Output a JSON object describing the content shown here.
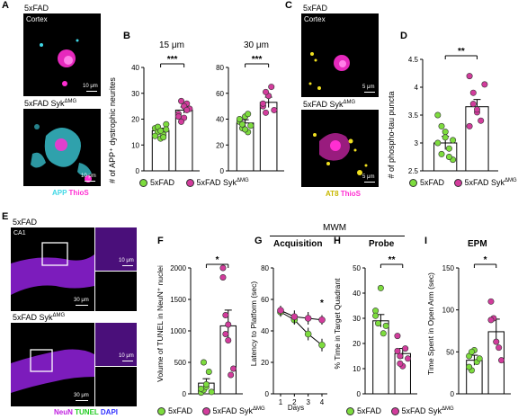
{
  "colors": {
    "wt": "#7ddc3e",
    "ko": "#d23c9c",
    "app": "#3fd7e6",
    "thios": "#ff2ed2",
    "at8": "#f0e020",
    "neun": "#a01fe0",
    "tunel": "#22ff22",
    "dapi": "#3030ff"
  },
  "panelA": {
    "letter": "A",
    "top_label": "5xFAD",
    "region": "Cortex",
    "bottom_label": "5xFAD Syk",
    "sup": "ΔMG",
    "scale_top": "10 μm",
    "scale_bottom": "10 μm",
    "channel1": "APP",
    "channel2": "ThioS"
  },
  "panelB": {
    "letter": "B",
    "ylabel": "# of APP⁺ dystrophic neurites",
    "sig1": "***",
    "sig2": "***",
    "legend_wt": "5xFAD",
    "legend_ko": "5xFAD Syk",
    "legend_sup": "ΔMG"
  },
  "panelC": {
    "letter": "C",
    "top_label": "5xFAD",
    "region": "Cortex",
    "bottom_label": "5xFAD Syk",
    "sup": "ΔMG",
    "scale_top": "5 μm",
    "scale_bottom": "5 μm",
    "channel1": "AT8",
    "channel2": "ThioS"
  },
  "panelD": {
    "letter": "D",
    "ylabel": "# of phospho-tau puncta",
    "sig": "**",
    "legend_wt": "5xFAD",
    "legend_ko": "5xFAD Syk",
    "legend_sup": "ΔMG"
  },
  "panelE": {
    "letter": "E",
    "top_label": "5xFAD",
    "region": "CA1",
    "bottom_label": "5xFAD Syk",
    "sup": "ΔMG",
    "scale_a": "10 μm",
    "scale_b": "30 μm",
    "scale_c": "10 μm",
    "scale_d": "30 μm",
    "channel1": "NeuN",
    "channel2": "TUNEL",
    "channel3": "DAPI"
  },
  "panelF": {
    "letter": "F",
    "ylabel": "Volume of TUNEL in NeuN⁺ nuclei",
    "sig": "*"
  },
  "panelG": {
    "letter": "G",
    "title": "Acquisition",
    "ylabel": "Latency to Platform (sec)",
    "xlabel": "Days",
    "sig": "*"
  },
  "panelH": {
    "letter": "H",
    "title": "Probe",
    "ylabel": "% Time in Target Quadrant",
    "sig": "**"
  },
  "panelI": {
    "letter": "I",
    "title": "EPM",
    "ylabel": "Time Spent in Open Arm (sec)",
    "sig": "*"
  },
  "mwm_label": "MWM",
  "bottom_legend": {
    "wt": "5xFAD",
    "ko": "5xFAD Syk",
    "sup": "ΔMG"
  },
  "chart_data": [
    {
      "id": "B1",
      "type": "bar",
      "title": "15 μm",
      "categories": [
        "5xFAD",
        "5xFAD SykΔMG"
      ],
      "values": [
        15.5,
        23.5
      ],
      "errors": [
        1.0,
        1.2
      ],
      "ylim": [
        0,
        40
      ],
      "yticks": [
        0,
        10,
        20,
        30,
        40
      ],
      "points": [
        [
          16.5,
          15,
          12.5,
          14,
          18,
          13.5,
          17,
          15.5,
          13,
          16
        ],
        [
          22,
          27,
          20.5,
          26,
          24,
          21,
          19,
          25,
          23.5
        ]
      ]
    },
    {
      "id": "B2",
      "type": "bar",
      "title": "30 μm",
      "categories": [
        "5xFAD",
        "5xFAD SykΔMG"
      ],
      "values": [
        37,
        53
      ],
      "errors": [
        2.5,
        4
      ],
      "ylim": [
        0,
        80
      ],
      "yticks": [
        0,
        20,
        40,
        60,
        80
      ],
      "points": [
        [
          38,
          33,
          42,
          30,
          35,
          40,
          36,
          32,
          44
        ],
        [
          50,
          45,
          58,
          65,
          47,
          52,
          61
        ]
      ]
    },
    {
      "id": "D",
      "type": "bar",
      "categories": [
        "5xFAD",
        "5xFAD SykΔMG"
      ],
      "values": [
        3.0,
        3.65
      ],
      "errors": [
        0.12,
        0.13
      ],
      "ylim": [
        2.5,
        4.5
      ],
      "yticks": [
        2.5,
        3.0,
        3.5,
        4.0,
        4.5
      ],
      "points": [
        [
          3.5,
          3.3,
          3.1,
          2.9,
          2.7,
          3.0,
          2.8,
          3.2,
          2.75,
          3.05
        ],
        [
          4.2,
          3.9,
          3.55,
          3.4,
          4.05,
          3.3,
          3.7,
          3.6
        ]
      ]
    },
    {
      "id": "F",
      "type": "bar",
      "categories": [
        "5xFAD",
        "5xFAD SykΔMG"
      ],
      "values": [
        170,
        1080
      ],
      "errors": [
        70,
        250
      ],
      "ylim": [
        0,
        2000
      ],
      "yticks": [
        0,
        500,
        1000,
        1500,
        2000
      ],
      "points": [
        [
          20,
          60,
          110,
          350,
          30,
          80,
          500,
          150
        ],
        [
          1850,
          1250,
          850,
          300,
          400,
          2000,
          950,
          1100
        ]
      ]
    },
    {
      "id": "G",
      "type": "line",
      "x": [
        1,
        2,
        3,
        4
      ],
      "ylim": [
        0,
        80
      ],
      "yticks": [
        0,
        20,
        40,
        60,
        80
      ],
      "series": [
        {
          "values": [
            52,
            47,
            38,
            31
          ],
          "errors": [
            3,
            3,
            4,
            4
          ]
        },
        {
          "values": [
            53,
            49,
            48,
            47
          ],
          "errors": [
            3,
            4,
            4,
            3
          ]
        }
      ]
    },
    {
      "id": "H",
      "type": "bar",
      "categories": [
        "5xFAD",
        "5xFAD SykΔMG"
      ],
      "values": [
        29,
        16
      ],
      "errors": [
        2.5,
        2
      ],
      "ylim": [
        0,
        50
      ],
      "yticks": [
        0,
        10,
        20,
        30,
        40,
        50
      ],
      "points": [
        [
          33,
          28,
          42,
          24,
          27,
          31
        ],
        [
          23,
          15,
          11,
          18,
          14,
          17,
          12
        ]
      ]
    },
    {
      "id": "I",
      "type": "bar",
      "categories": [
        "5xFAD",
        "5xFAD SykΔMG"
      ],
      "values": [
        40,
        74
      ],
      "errors": [
        6,
        15
      ],
      "ylim": [
        0,
        150
      ],
      "yticks": [
        0,
        50,
        100,
        150
      ],
      "points": [
        [
          45,
          28,
          52,
          38,
          42,
          32,
          50
        ],
        [
          110,
          90,
          62,
          55,
          40,
          88
        ]
      ]
    }
  ]
}
